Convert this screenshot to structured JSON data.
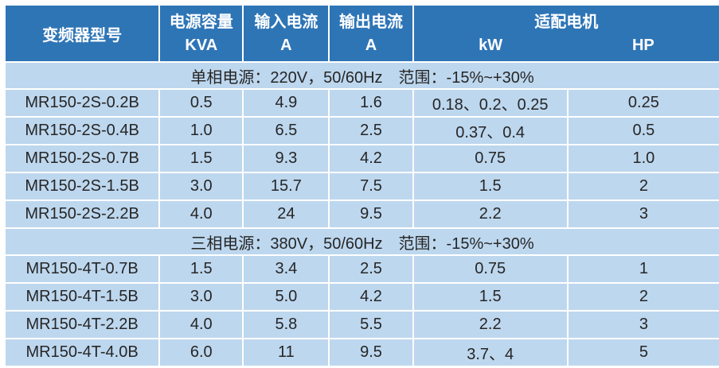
{
  "table": {
    "header": {
      "model": "变频器型号",
      "capacity": [
        "电源容量",
        "KVA"
      ],
      "input_current": [
        "输入电流",
        "A"
      ],
      "output_current": [
        "输出电流",
        "A"
      ],
      "motor": "适配电机",
      "motor_kw": "kW",
      "motor_hp": "HP"
    },
    "sections": [
      {
        "label": "单相电源：220V，50/60Hz　范围：-15%~+30%",
        "rows": [
          [
            "MR150-2S-0.2B",
            "0.5",
            "4.9",
            "1.6",
            "0.18、0.2、0.25",
            "0.25"
          ],
          [
            "MR150-2S-0.4B",
            "1.0",
            "6.5",
            "2.5",
            "0.37、0.4",
            "0.5"
          ],
          [
            "MR150-2S-0.7B",
            "1.5",
            "9.3",
            "4.2",
            "0.75",
            "1.0"
          ],
          [
            "MR150-2S-1.5B",
            "3.0",
            "15.7",
            "7.5",
            "1.5",
            "2"
          ],
          [
            "MR150-2S-2.2B",
            "4.0",
            "24",
            "9.5",
            "2.2",
            "3"
          ]
        ]
      },
      {
        "label": "三相电源：380V，50/60Hz　范围：-15%~+30%",
        "rows": [
          [
            "MR150-4T-0.7B",
            "1.5",
            "3.4",
            "2.5",
            "0.75",
            "1"
          ],
          [
            "MR150-4T-1.5B",
            "3.0",
            "5.0",
            "4.2",
            "1.5",
            "2"
          ],
          [
            "MR150-4T-2.2B",
            "4.0",
            "5.8",
            "5.5",
            "2.2",
            "3"
          ],
          [
            "MR150-4T-4.0B",
            "6.0",
            "11",
            "9.5",
            "3.7、4",
            "5"
          ]
        ]
      }
    ]
  },
  "colors": {
    "header_bg": "#2E75B6",
    "row_bg": "#BDD7EE",
    "grid_line": "#FFFFFF",
    "header_text": "#FFFFFF",
    "body_text": "#262626"
  }
}
